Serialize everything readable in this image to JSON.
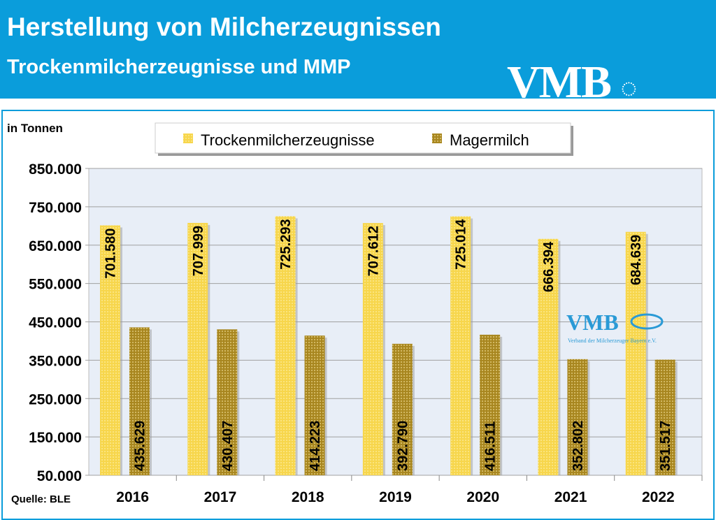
{
  "header": {
    "title": "Herstellung von Milcherzeugnissen",
    "subtitle": "Trockenmilcherzeugnisse und MMP",
    "logo": "VMB"
  },
  "watermark": {
    "logo": "VMB",
    "text": "Verband der Milcherzeuger Bayern e.V."
  },
  "colors": {
    "header": "#0a9ddb",
    "series1": "#f5d24a",
    "series2": "#b8962a",
    "plot_bg": "#e8eef7"
  },
  "chart_data": {
    "type": "bar",
    "ylabel": "in Tonnen",
    "source": "Quelle: BLE",
    "categories": [
      "2016",
      "2017",
      "2018",
      "2019",
      "2020",
      "2021",
      "2022"
    ],
    "series": [
      {
        "name": "Trockenmilcherzeugnisse",
        "values": [
          701580,
          707999,
          725293,
          707612,
          725014,
          666394,
          684639
        ],
        "labels": [
          "701.580",
          "707.999",
          "725.293",
          "707.612",
          "725.014",
          "666.394",
          "684.639"
        ]
      },
      {
        "name": "Magermilch",
        "values": [
          435629,
          430407,
          414223,
          392790,
          416511,
          352802,
          351517
        ],
        "labels": [
          "435.629",
          "430.407",
          "414.223",
          "392.790",
          "416.511",
          "352.802",
          "351.517"
        ]
      }
    ],
    "ylim": [
      50000,
      850000
    ],
    "yticks": [
      "50.000",
      "150.000",
      "250.000",
      "350.000",
      "450.000",
      "550.000",
      "650.000",
      "750.000",
      "850.000"
    ],
    "legend": "top-center",
    "grid": true
  }
}
